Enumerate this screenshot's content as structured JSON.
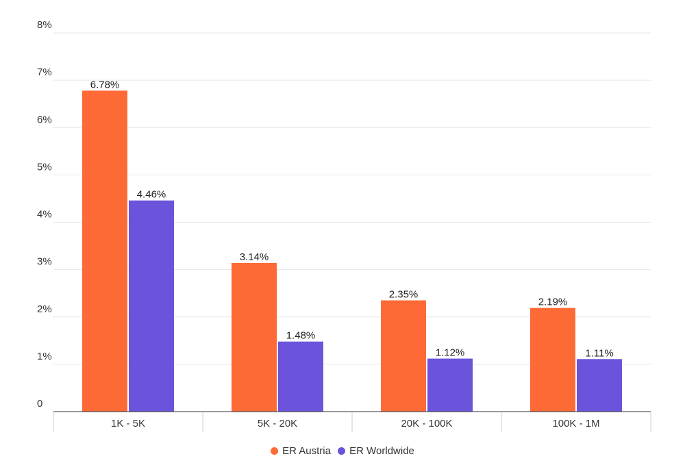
{
  "chart_data": {
    "type": "bar",
    "categories": [
      "1K - 5K",
      "5K - 20K",
      "20K - 100K",
      "100K - 1M"
    ],
    "series": [
      {
        "name": "ER Austria",
        "color": "#fe6a35",
        "values": [
          6.78,
          3.14,
          2.35,
          2.19
        ],
        "labels": [
          "6.78%",
          "3.14%",
          "2.35%",
          "2.19%"
        ]
      },
      {
        "name": "ER Worldwide",
        "color": "#6b54db",
        "values": [
          4.46,
          1.48,
          1.12,
          1.11
        ],
        "labels": [
          "4.46%",
          "1.48%",
          "1.12%",
          "1.11%"
        ]
      }
    ],
    "yticks": [
      0,
      1,
      2,
      3,
      4,
      5,
      6,
      7,
      8
    ],
    "yticklabels": [
      "0",
      "1%",
      "2%",
      "3%",
      "4%",
      "5%",
      "6%",
      "7%",
      "8%"
    ],
    "ylim": [
      0,
      8
    ],
    "grid": true,
    "legend_position": "bottom-center",
    "title": "",
    "xlabel": "",
    "ylabel": ""
  }
}
